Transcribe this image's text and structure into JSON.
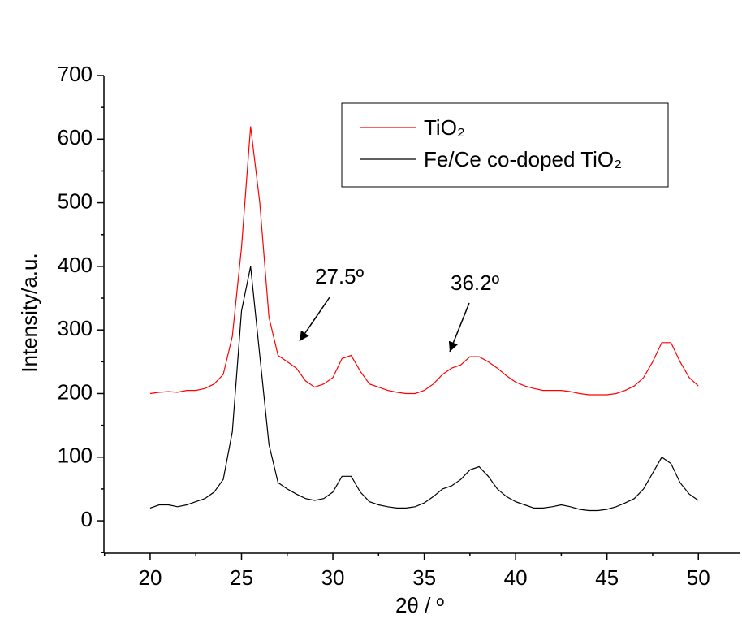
{
  "chart_data": {
    "type": "line",
    "xlabel": "2θ / º",
    "ylabel": "Intensity/a.u.",
    "x": [
      20,
      20.5,
      21,
      21.5,
      22,
      22.5,
      23,
      23.5,
      24,
      24.5,
      25,
      25.5,
      26,
      26.5,
      27,
      27.5,
      28,
      28.5,
      29,
      29.5,
      30,
      30.5,
      31,
      31.5,
      32,
      32.5,
      33,
      33.5,
      34,
      34.5,
      35,
      35.5,
      36,
      36.5,
      37,
      37.5,
      38,
      38.5,
      39,
      39.5,
      40,
      40.5,
      41,
      41.5,
      42,
      42.5,
      43,
      43.5,
      44,
      44.5,
      45,
      45.5,
      46,
      46.5,
      47,
      47.5,
      48,
      48.5,
      49,
      49.5,
      50
    ],
    "series": [
      {
        "name": "TiO₂",
        "color": "#ff0000",
        "values": [
          200,
          202,
          203,
          202,
          205,
          205,
          208,
          215,
          230,
          290,
          430,
          620,
          500,
          320,
          260,
          250,
          240,
          220,
          210,
          215,
          225,
          255,
          260,
          235,
          215,
          210,
          205,
          202,
          200,
          200,
          205,
          215,
          230,
          240,
          245,
          258,
          258,
          250,
          240,
          228,
          218,
          212,
          208,
          205,
          205,
          205,
          203,
          200,
          198,
          198,
          198,
          200,
          205,
          212,
          225,
          250,
          280,
          280,
          250,
          225,
          212
        ]
      },
      {
        "name": "Fe/Ce co-doped TiO₂",
        "color": "#000000",
        "values": [
          20,
          25,
          25,
          22,
          25,
          30,
          35,
          45,
          65,
          140,
          330,
          400,
          260,
          120,
          60,
          50,
          42,
          35,
          32,
          35,
          45,
          70,
          70,
          45,
          30,
          25,
          22,
          20,
          20,
          22,
          28,
          38,
          50,
          55,
          65,
          80,
          85,
          70,
          50,
          38,
          30,
          25,
          20,
          20,
          22,
          25,
          22,
          18,
          16,
          16,
          18,
          22,
          28,
          35,
          50,
          75,
          100,
          90,
          60,
          42,
          32
        ]
      }
    ],
    "annotations": [
      "27.5º",
      "36.2º"
    ],
    "xlim": [
      17.47,
      52.3
    ],
    "ylim": [
      -51,
      700
    ],
    "xticks": [
      20,
      25,
      30,
      35,
      40,
      45,
      50
    ],
    "yticks": [
      0,
      100,
      200,
      300,
      400,
      500,
      600,
      700
    ],
    "legend": "upper right"
  }
}
